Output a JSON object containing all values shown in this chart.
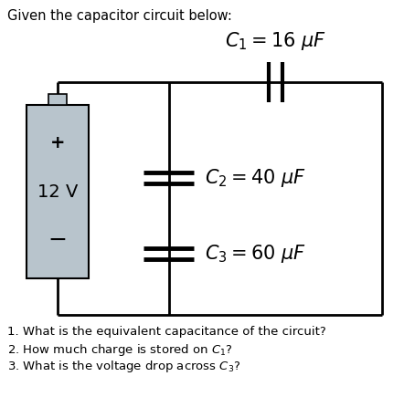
{
  "title_text": "Given the capacitor circuit below:",
  "title_fontsize": 10.5,
  "background_color": "#ffffff",
  "battery_color": "#b8c4cc",
  "c1_label": "$C_1 = 16\\ \\mu F$",
  "c2_label": "$C_2 = 40\\ \\mu F$",
  "c3_label": "$C_3 = 60\\ \\mu F$",
  "questions": [
    "1. What is the equivalent capacitance of the circuit?",
    "2. How much charge is stored on $C_1$?",
    "3. What is the voltage drop across $C_3$?"
  ],
  "q_fontsize": 9.5,
  "c1_fontsize": 15,
  "c23_fontsize": 15,
  "battery_label": "12 V",
  "plus_label": "+",
  "minus_label": "−",
  "lw": 2.0
}
